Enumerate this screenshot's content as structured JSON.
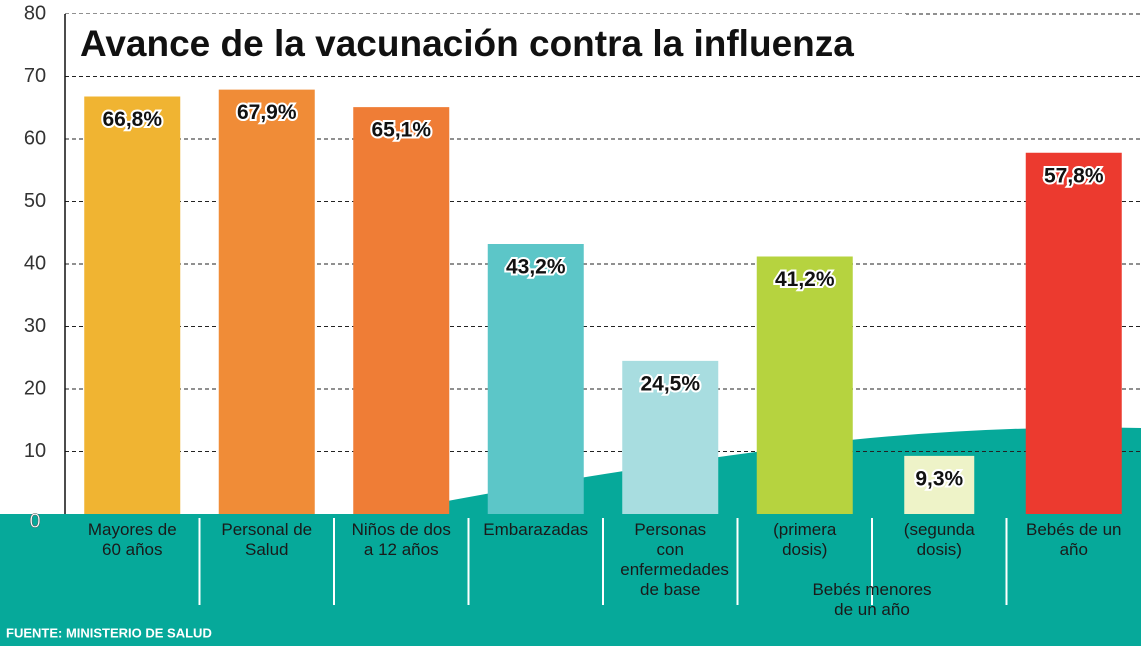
{
  "chart_data": {
    "type": "bar",
    "title": "Avance de la vacunación contra la influenza",
    "categories": [
      "Mayores de 60 años",
      "Personal de Salud",
      "Niños de dos a 12 años",
      "Embarazadas",
      "Personas con enfermedades de base",
      "(primera dosis)",
      "(segunda dosis)",
      "Bebés de un año"
    ],
    "values": [
      66.8,
      67.9,
      65.1,
      43.2,
      24.5,
      41.2,
      9.3,
      57.8
    ],
    "value_labels": [
      "66,8%",
      "67,9%",
      "65,1%",
      "43,2%",
      "24,5%",
      "41,2%",
      "9,3%",
      "57,8%"
    ],
    "colors": [
      "#f0b432",
      "#f08c37",
      "#ef7d36",
      "#5cc6c8",
      "#a8dde0",
      "#b6d33f",
      "#eef3c8",
      "#ec3a2f"
    ],
    "group_label": "Bebés menores de un año",
    "source": "FUENTE: MINISTERIO DE SALUD",
    "ylim": [
      0,
      80
    ],
    "yticks": [
      0,
      10,
      20,
      30,
      40,
      50,
      60,
      70,
      80
    ],
    "grid": true
  }
}
